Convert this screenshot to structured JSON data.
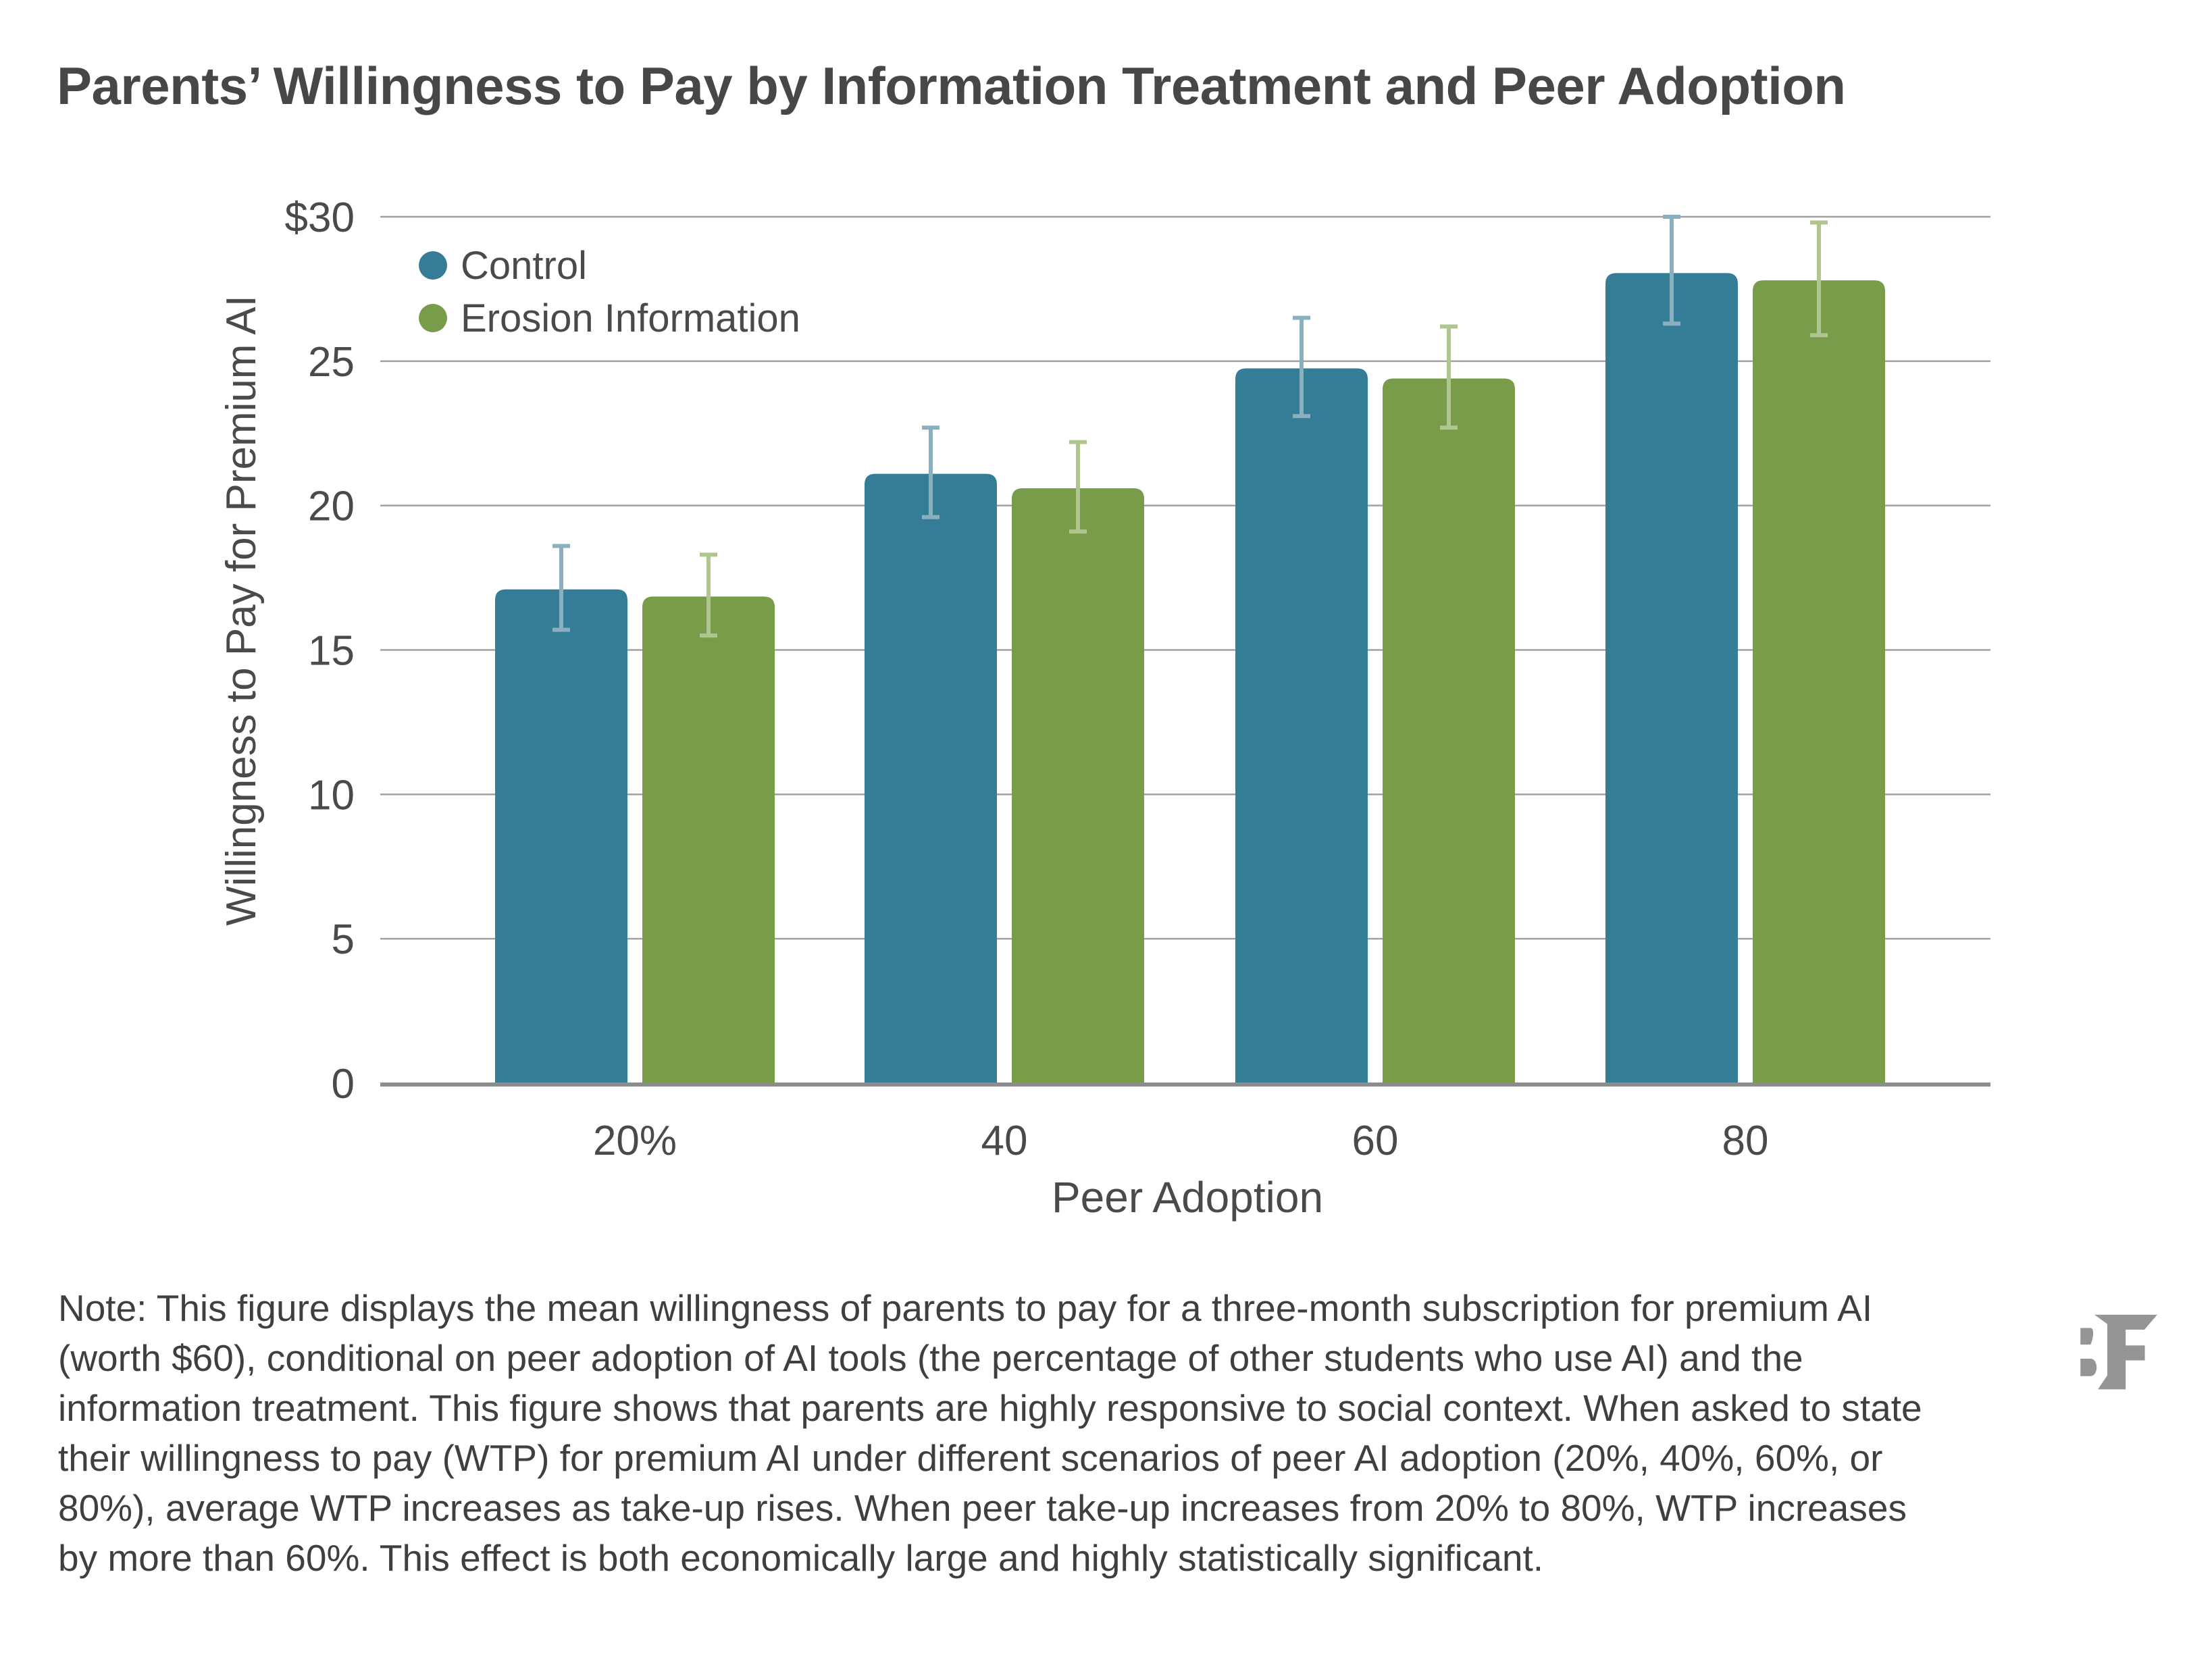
{
  "title": "Parents’ Willingness to Pay by Information Treatment and Peer Adoption",
  "note": "Note: This figure displays the mean willingness of parents to pay for a three-month subscription for premium AI (worth $60), conditional on peer adoption of AI tools (the percentage of other students who use AI) and the information treatment. This figure shows that parents are highly responsive to social context. When asked to state their willingness to pay (WTP) for premium AI under different scenarios of peer AI adoption (20%, 40%, 60%, or 80%), average WTP increases as take-up rises. When peer take-up increases from 20% to 80%, WTP increases by more than 60%. This effect is both economically large and highly statistically significant.",
  "logo_text": "BF",
  "colors": {
    "control": "#357d96",
    "erosion": "#789c4a",
    "control_err": "#8ab0c0",
    "erosion_err": "#afc690",
    "grid": "#a0a0a0",
    "axis": "#8c8c8c"
  },
  "chart_data": {
    "type": "bar",
    "title": "Parents’ Willingness to Pay by Information Treatment and Peer Adoption",
    "xlabel": "Peer Adoption",
    "ylabel": "Willingness to Pay for Premium AI",
    "categories": [
      "20%",
      "40",
      "60",
      "80"
    ],
    "ylim": [
      0,
      30
    ],
    "yticks": [
      0,
      5,
      10,
      15,
      20,
      25,
      30
    ],
    "ytick_labels": [
      "0",
      "5",
      "10",
      "15",
      "20",
      "25",
      "$30"
    ],
    "grid": true,
    "legend_position": "top-left",
    "series": [
      {
        "name": "Control",
        "values": [
          17.1,
          21.1,
          24.75,
          28.05
        ],
        "err_low": [
          15.7,
          19.6,
          23.1,
          26.3
        ],
        "err_high": [
          18.6,
          22.7,
          26.5,
          30.0
        ]
      },
      {
        "name": "Erosion Information",
        "values": [
          16.85,
          20.6,
          24.4,
          27.8
        ],
        "err_low": [
          15.5,
          19.1,
          22.7,
          25.9
        ],
        "err_high": [
          18.3,
          22.2,
          26.2,
          29.8
        ]
      }
    ]
  }
}
